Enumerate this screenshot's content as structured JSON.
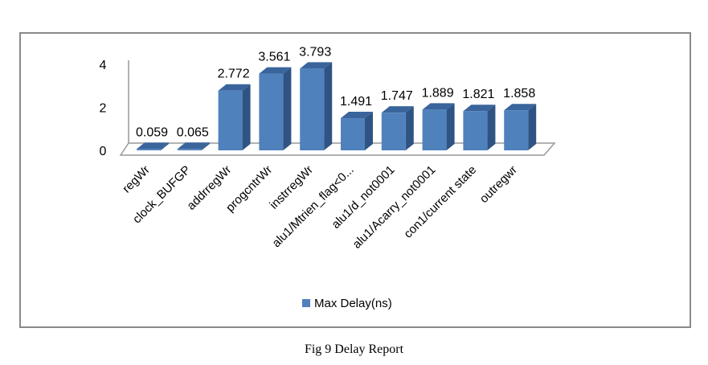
{
  "chart_data": {
    "type": "bar",
    "style": "3d-column",
    "categories": [
      "regWr",
      "clock_BUFGP",
      "addrregWr",
      "progcntrWr",
      "instrregWr",
      "alu1/Mtrien_flag<0...",
      "alu1/d_not0001",
      "alu1/Acarry_not0001",
      "con1/current state",
      "outregwr"
    ],
    "series": [
      {
        "name": "Max Delay(ns)",
        "values": [
          0.059,
          0.065,
          2.772,
          3.561,
          3.793,
          1.491,
          1.747,
          1.889,
          1.821,
          1.858
        ],
        "color": "#4f81bd"
      }
    ],
    "data_labels": [
      "0.059",
      "0.065",
      "2.772",
      "3.561",
      "3.793",
      "1.491",
      "1.747",
      "1.889",
      "1.821",
      "1.858"
    ],
    "yticks": [
      "0",
      "2",
      "4"
    ],
    "ylim": [
      0,
      4
    ],
    "grid": false,
    "legend": "bottom"
  },
  "caption": "Fig 9 Delay Report"
}
